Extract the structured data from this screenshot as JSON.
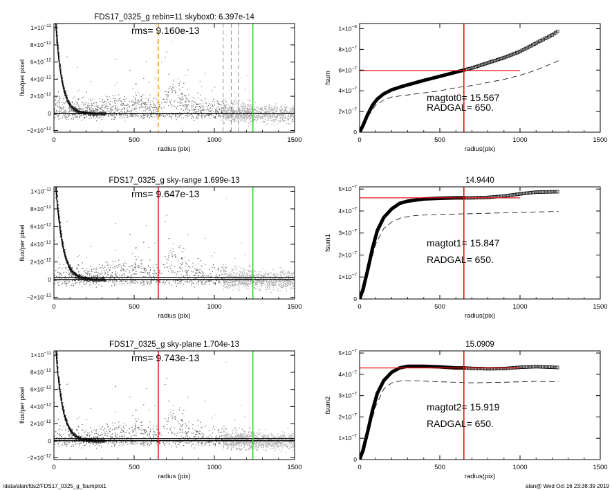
{
  "footer": {
    "path": "/data/alan/fds2/FDS17_0325_g_fsumplot1",
    "timestamp": "alan@  Wed Oct 16 23:38:39 2019"
  },
  "colors": {
    "red": "#ee1111",
    "green": "#22dd22",
    "orange": "#ff9922",
    "scatter_gray": "#777777",
    "scatter_light": "#aaaaaa"
  },
  "chart_data": [
    {
      "type": "scatter",
      "title": "FDS17_0325_g rebin=11    skybox0:  6.397e-14",
      "annotations": [
        "rms= 9.160e-13"
      ],
      "xlabel": "radius (pix)",
      "ylabel": "flux/per pixel",
      "xlim": [
        0,
        1500
      ],
      "ylim": [
        -2.2e-12,
        1.05e-11
      ],
      "xticks": [
        "0",
        "500",
        "1000",
        "1500"
      ],
      "yticks": [
        {
          "value": -2e-12,
          "mant": "−2×10",
          "exp": "−12"
        },
        {
          "value": 0,
          "mant": "0",
          "exp": ""
        },
        {
          "value": 2e-12,
          "mant": "2×10",
          "exp": "−12"
        },
        {
          "value": 4e-12,
          "mant": "4×10",
          "exp": "−12"
        },
        {
          "value": 6e-12,
          "mant": "6×10",
          "exp": "−12"
        },
        {
          "value": 8e-12,
          "mant": "8×10",
          "exp": "−12"
        },
        {
          "value": 1e-11,
          "mant": "1×10",
          "exp": "−11"
        }
      ],
      "profile": {
        "amplitude": 1.4e-11,
        "scale": 38,
        "x_end": 1240
      },
      "background_bumps": [
        {
          "x": 520,
          "amplitude": 6e-13
        },
        {
          "x": 750,
          "amplitude": 1.5e-12
        }
      ],
      "vlines": [
        {
          "x": 650,
          "color": "orange",
          "dash": true
        },
        {
          "x": 1240,
          "color": "green",
          "dash": false
        }
      ],
      "dashed_gray_vlines": [
        1055,
        1105,
        1150
      ],
      "hlines": [
        {
          "y": 0
        }
      ]
    },
    {
      "type": "line",
      "title": "",
      "annotations": [
        "magtot0=  15.567",
        "RADGAL=     650."
      ],
      "xlabel": "radius(pix)",
      "ylabel": "fsum",
      "xlim": [
        0,
        1500
      ],
      "ylim": [
        0,
        1.05e-06
      ],
      "xticks": [
        "0",
        "500",
        "1000",
        "1500"
      ],
      "yticks": [
        {
          "value": 0,
          "mant": "0",
          "exp": ""
        },
        {
          "value": 2e-07,
          "mant": "2×10",
          "exp": "−7"
        },
        {
          "value": 4e-07,
          "mant": "4×10",
          "exp": "−7"
        },
        {
          "value": 6e-07,
          "mant": "6×10",
          "exp": "−7"
        },
        {
          "value": 8e-07,
          "mant": "8×10",
          "exp": "−7"
        },
        {
          "value": 1e-06,
          "mant": "1×10",
          "exp": "−6"
        }
      ],
      "solid_series": [
        [
          0,
          0
        ],
        [
          20,
          6e-08
        ],
        [
          50,
          1.7e-07
        ],
        [
          80,
          2.6e-07
        ],
        [
          110,
          3.2e-07
        ],
        [
          150,
          3.7e-07
        ],
        [
          200,
          4.1e-07
        ],
        [
          260,
          4.4e-07
        ],
        [
          330,
          4.7e-07
        ],
        [
          400,
          5e-07
        ],
        [
          500,
          5.4e-07
        ],
        [
          600,
          5.8e-07
        ],
        [
          650,
          6e-07
        ]
      ],
      "marker_series": [
        [
          650,
          6e-07
        ],
        [
          700,
          6.2e-07
        ],
        [
          800,
          6.7e-07
        ],
        [
          900,
          7.2e-07
        ],
        [
          1000,
          7.8e-07
        ],
        [
          1100,
          8.6e-07
        ],
        [
          1200,
          9.4e-07
        ],
        [
          1240,
          9.8e-07
        ]
      ],
      "dashed_series": [
        [
          0,
          0
        ],
        [
          30,
          7e-08
        ],
        [
          60,
          1.7e-07
        ],
        [
          100,
          2.6e-07
        ],
        [
          150,
          3.1e-07
        ],
        [
          200,
          3.4e-07
        ],
        [
          250,
          3.5e-07
        ],
        [
          300,
          3.6e-07
        ],
        [
          400,
          3.8e-07
        ],
        [
          500,
          4e-07
        ],
        [
          600,
          4.3e-07
        ],
        [
          700,
          4.5e-07
        ],
        [
          800,
          4.8e-07
        ],
        [
          900,
          5.1e-07
        ],
        [
          1000,
          5.5e-07
        ],
        [
          1100,
          6e-07
        ],
        [
          1240,
          6.9e-07
        ]
      ],
      "vlines": [
        {
          "x": 650,
          "color": "red"
        }
      ],
      "hlines": [
        {
          "y": 5.95e-07,
          "x_end": 1000,
          "color": "red"
        }
      ]
    },
    {
      "type": "scatter",
      "title": "FDS17_0325_g sky-range  1.699e-13",
      "annotations": [
        "rms= 9.647e-13"
      ],
      "xlabel": "radius (pix)",
      "ylabel": "flux/per pixel",
      "xlim": [
        0,
        1500
      ],
      "ylim": [
        -2.2e-12,
        1.05e-11
      ],
      "xticks": [
        "0",
        "500",
        "1000",
        "1500"
      ],
      "yticks": [
        {
          "value": -2e-12,
          "mant": "−2×10",
          "exp": "−12"
        },
        {
          "value": 0,
          "mant": "0",
          "exp": ""
        },
        {
          "value": 2e-12,
          "mant": "2×10",
          "exp": "−12"
        },
        {
          "value": 4e-12,
          "mant": "4×10",
          "exp": "−12"
        },
        {
          "value": 6e-12,
          "mant": "6×10",
          "exp": "−12"
        },
        {
          "value": 8e-12,
          "mant": "8×10",
          "exp": "−12"
        },
        {
          "value": 1e-11,
          "mant": "1×10",
          "exp": "−11"
        }
      ],
      "profile": {
        "amplitude": 1.4e-11,
        "scale": 42,
        "x_end": 1240
      },
      "background_bumps": [
        {
          "x": 520,
          "amplitude": 7e-13
        },
        {
          "x": 750,
          "amplitude": 1.6e-12
        }
      ],
      "vlines": [
        {
          "x": 650,
          "color": "red",
          "dash": false
        },
        {
          "x": 1240,
          "color": "green",
          "dash": false
        }
      ],
      "dashed_gray_vlines": [],
      "hlines": [
        {
          "y": 0
        },
        {
          "y": 2.5e-13
        }
      ]
    },
    {
      "type": "line",
      "title": "14.9440",
      "annotations": [
        "magtot1=  15.847",
        "RADGAL=     650."
      ],
      "xlabel": "radius(pix)",
      "ylabel": "fsum1",
      "xlim": [
        0,
        1500
      ],
      "ylim": [
        0,
        5.1e-07
      ],
      "xticks": [
        "0",
        "500",
        "1000",
        "1500"
      ],
      "yticks": [
        {
          "value": 0,
          "mant": "0",
          "exp": ""
        },
        {
          "value": 1e-07,
          "mant": "1×10",
          "exp": "−7"
        },
        {
          "value": 2e-07,
          "mant": "2×10",
          "exp": "−7"
        },
        {
          "value": 3e-07,
          "mant": "3×10",
          "exp": "−7"
        },
        {
          "value": 4e-07,
          "mant": "4×10",
          "exp": "−7"
        },
        {
          "value": 5e-07,
          "mant": "5×10",
          "exp": "−7"
        }
      ],
      "solid_series": [
        [
          0,
          0
        ],
        [
          20,
          4e-08
        ],
        [
          50,
          1.3e-07
        ],
        [
          80,
          2.3e-07
        ],
        [
          110,
          3.1e-07
        ],
        [
          150,
          3.7e-07
        ],
        [
          200,
          4.1e-07
        ],
        [
          250,
          4.35e-07
        ],
        [
          300,
          4.45e-07
        ],
        [
          400,
          4.55e-07
        ],
        [
          500,
          4.58e-07
        ],
        [
          600,
          4.6e-07
        ],
        [
          650,
          4.6e-07
        ]
      ],
      "marker_series": [
        [
          650,
          4.6e-07
        ],
        [
          700,
          4.6e-07
        ],
        [
          800,
          4.62e-07
        ],
        [
          900,
          4.68e-07
        ],
        [
          1000,
          4.78e-07
        ],
        [
          1100,
          4.86e-07
        ],
        [
          1240,
          4.88e-07
        ]
      ],
      "dashed_series": [
        [
          0,
          0
        ],
        [
          30,
          4e-08
        ],
        [
          60,
          1.4e-07
        ],
        [
          100,
          2.5e-07
        ],
        [
          150,
          3.2e-07
        ],
        [
          200,
          3.5e-07
        ],
        [
          260,
          3.7e-07
        ],
        [
          350,
          3.8e-07
        ],
        [
          500,
          3.85e-07
        ],
        [
          700,
          3.88e-07
        ],
        [
          900,
          3.92e-07
        ],
        [
          1100,
          3.96e-07
        ],
        [
          1240,
          3.98e-07
        ]
      ],
      "vlines": [
        {
          "x": 650,
          "color": "red"
        }
      ],
      "hlines": [
        {
          "y": 4.6e-07,
          "x_end": 1000,
          "color": "red"
        }
      ]
    },
    {
      "type": "scatter",
      "title": "FDS17_0325_g sky-plane  1.704e-13",
      "annotations": [
        "rms= 9.743e-13"
      ],
      "xlabel": "radius (pix)",
      "ylabel": "flux/per pixel",
      "xlim": [
        0,
        1500
      ],
      "ylim": [
        -2.2e-12,
        1.05e-11
      ],
      "xticks": [
        "0",
        "500",
        "1000",
        "1500"
      ],
      "yticks": [
        {
          "value": -2e-12,
          "mant": "−2×10",
          "exp": "−12"
        },
        {
          "value": 0,
          "mant": "0",
          "exp": ""
        },
        {
          "value": 2e-12,
          "mant": "2×10",
          "exp": "−12"
        },
        {
          "value": 4e-12,
          "mant": "4×10",
          "exp": "−12"
        },
        {
          "value": 6e-12,
          "mant": "6×10",
          "exp": "−12"
        },
        {
          "value": 8e-12,
          "mant": "8×10",
          "exp": "−12"
        },
        {
          "value": 1e-11,
          "mant": "1×10",
          "exp": "−11"
        }
      ],
      "profile": {
        "amplitude": 1.4e-11,
        "scale": 42,
        "x_end": 1240
      },
      "background_bumps": [
        {
          "x": 520,
          "amplitude": 7e-13
        },
        {
          "x": 750,
          "amplitude": 1.6e-12
        }
      ],
      "vlines": [
        {
          "x": 650,
          "color": "red",
          "dash": false
        },
        {
          "x": 1240,
          "color": "green",
          "dash": false
        }
      ],
      "dashed_gray_vlines": [],
      "hlines": [
        {
          "y": 0
        },
        {
          "y": 2.5e-13
        }
      ]
    },
    {
      "type": "line",
      "title": "15.0909",
      "annotations": [
        "magtot2=  15.919",
        "RADGAL=     650."
      ],
      "xlabel": "radius(pix)",
      "ylabel": "fsum2",
      "xlim": [
        0,
        1500
      ],
      "ylim": [
        0,
        5.1e-07
      ],
      "xticks": [
        "0",
        "500",
        "1000",
        "1500"
      ],
      "yticks": [
        {
          "value": 0,
          "mant": "0",
          "exp": ""
        },
        {
          "value": 1e-07,
          "mant": "1×10",
          "exp": "−7"
        },
        {
          "value": 2e-07,
          "mant": "2×10",
          "exp": "−7"
        },
        {
          "value": 3e-07,
          "mant": "3×10",
          "exp": "−7"
        },
        {
          "value": 4e-07,
          "mant": "4×10",
          "exp": "−7"
        },
        {
          "value": 5e-07,
          "mant": "5×10",
          "exp": "−7"
        }
      ],
      "solid_series": [
        [
          0,
          0
        ],
        [
          20,
          4e-08
        ],
        [
          50,
          1.3e-07
        ],
        [
          80,
          2.3e-07
        ],
        [
          110,
          3.1e-07
        ],
        [
          150,
          3.7e-07
        ],
        [
          200,
          4.1e-07
        ],
        [
          250,
          4.3e-07
        ],
        [
          300,
          4.38e-07
        ],
        [
          400,
          4.38e-07
        ],
        [
          500,
          4.35e-07
        ],
        [
          600,
          4.3e-07
        ],
        [
          650,
          4.3e-07
        ]
      ],
      "marker_series": [
        [
          650,
          4.3e-07
        ],
        [
          700,
          4.28e-07
        ],
        [
          800,
          4.26e-07
        ],
        [
          900,
          4.27e-07
        ],
        [
          1000,
          4.33e-07
        ],
        [
          1100,
          4.36e-07
        ],
        [
          1240,
          4.32e-07
        ]
      ],
      "dashed_series": [
        [
          0,
          0
        ],
        [
          30,
          4e-08
        ],
        [
          60,
          1.4e-07
        ],
        [
          100,
          2.5e-07
        ],
        [
          150,
          3.3e-07
        ],
        [
          200,
          3.6e-07
        ],
        [
          260,
          3.7e-07
        ],
        [
          350,
          3.7e-07
        ],
        [
          500,
          3.65e-07
        ],
        [
          700,
          3.6e-07
        ],
        [
          900,
          3.63e-07
        ],
        [
          1100,
          3.67e-07
        ],
        [
          1240,
          3.65e-07
        ]
      ],
      "vlines": [
        {
          "x": 650,
          "color": "red"
        }
      ],
      "hlines": [
        {
          "y": 4.3e-07,
          "x_end": 1000,
          "color": "red"
        }
      ]
    }
  ]
}
